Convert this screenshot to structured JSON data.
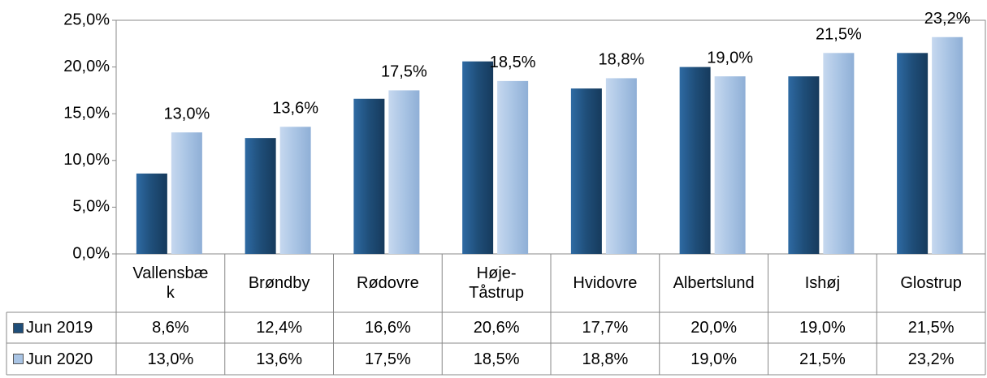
{
  "chart_data": {
    "type": "bar",
    "categories": [
      "Vallensbæk",
      "Brøndby",
      "Rødovre",
      "Høje-Tåstrup",
      "Hvidovre",
      "Albertslund",
      "Ishøj",
      "Glostrup"
    ],
    "series": [
      {
        "name": "Jun 2019",
        "color": "#1f4e79",
        "values": [
          8.6,
          12.4,
          16.6,
          20.6,
          17.7,
          20.0,
          19.0,
          21.5
        ],
        "value_labels": [
          "8,6%",
          "12,4%",
          "16,6%",
          "20,6%",
          "17,7%",
          "20,0%",
          "19,0%",
          "21,5%"
        ]
      },
      {
        "name": "Jun 2020",
        "color": "#a9c4e4",
        "values": [
          13.0,
          13.6,
          17.5,
          18.5,
          18.8,
          19.0,
          21.5,
          23.2
        ],
        "value_labels": [
          "13,0%",
          "13,6%",
          "17,5%",
          "18,5%",
          "18,8%",
          "19,0%",
          "21,5%",
          "23,2%"
        ]
      }
    ],
    "ylim": [
      0,
      25
    ],
    "yticks": [
      {
        "value": 0,
        "label": "0,0%"
      },
      {
        "value": 5,
        "label": "5,0%"
      },
      {
        "value": 10,
        "label": "10,0%"
      },
      {
        "value": 15,
        "label": "15,0%"
      },
      {
        "value": 20,
        "label": "20,0%"
      },
      {
        "value": 25,
        "label": "25,0%"
      }
    ],
    "grid": false,
    "data_labels_series": 1,
    "data_table": true
  }
}
